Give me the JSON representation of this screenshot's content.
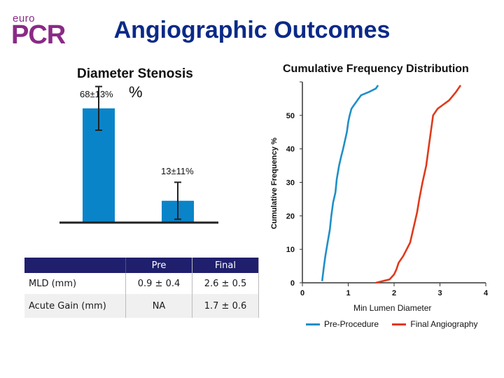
{
  "header": {
    "logo_top": "euro",
    "logo_main": "PCR",
    "title": "Angiographic Outcomes"
  },
  "colors": {
    "logo": "#8a2a86",
    "title": "#0a2a88",
    "bar": "#0a84c9",
    "pre": "#1f8fc8",
    "final": "#e03a1a",
    "table_header": "#1f1f6e"
  },
  "bar_panel": {
    "title_line1": "Diameter Stenosis",
    "title_line2": "%",
    "value_labels": [
      "68±13%",
      "13±11%"
    ]
  },
  "cfd_panel": {
    "title": "Cumulative Frequency Distribution",
    "ylabel": "Cumulative Frequency %",
    "xlabel": "Min Lumen Diameter",
    "legend": [
      "Pre-Procedure",
      "Final Angiography"
    ]
  },
  "table": {
    "headers": [
      "",
      "Pre",
      "Final"
    ],
    "rows": [
      {
        "label": "MLD (mm)",
        "pre": "0.9 ± 0.4",
        "final": "2.6 ± 0.5"
      },
      {
        "label": "Acute Gain (mm)",
        "pre": "NA",
        "final": "1.7 ± 0.6"
      }
    ]
  },
  "chart_data": [
    {
      "type": "bar",
      "title": "Diameter Stenosis %",
      "categories": [
        "",
        ""
      ],
      "values": [
        68,
        13
      ],
      "errors": [
        13,
        11
      ],
      "data_labels": [
        "68±13%",
        "13±11%"
      ],
      "ylim": [
        0,
        100
      ]
    },
    {
      "type": "line",
      "title": "Cumulative Frequency Distribution",
      "xlabel": "Min Lumen Diameter",
      "ylabel": "Cumulative Frequency %",
      "xlim": [
        0,
        4
      ],
      "ylim": [
        0,
        60
      ],
      "x_ticks": [
        0,
        1,
        2,
        3,
        4
      ],
      "y_ticks": [
        0,
        10,
        20,
        30,
        40,
        50
      ],
      "legend": "bottom",
      "series": [
        {
          "name": "Pre-Procedure",
          "x": [
            0.43,
            0.47,
            0.5,
            0.55,
            0.6,
            0.63,
            0.67,
            0.72,
            0.75,
            0.8,
            0.85,
            0.88,
            0.92,
            0.97,
            1.0,
            1.03,
            1.07,
            1.12,
            1.2,
            1.28,
            1.45,
            1.6,
            1.65
          ],
          "y": [
            0.5,
            5,
            8,
            12,
            16,
            20,
            24,
            27,
            31,
            35,
            38,
            39.5,
            42,
            45,
            48,
            50,
            52,
            53,
            54.5,
            56,
            57,
            58,
            59
          ]
        },
        {
          "name": "Final Angiography",
          "x": [
            1.6,
            1.9,
            2.0,
            2.05,
            2.1,
            2.2,
            2.35,
            2.45,
            2.5,
            2.55,
            2.62,
            2.7,
            2.75,
            2.8,
            2.85,
            2.95,
            3.05,
            3.2,
            3.35,
            3.45
          ],
          "y": [
            0,
            1,
            2.5,
            4,
            6,
            8,
            12,
            18,
            21,
            25,
            30,
            35,
            40,
            45,
            50,
            52,
            53,
            54.5,
            57,
            59
          ]
        }
      ]
    }
  ]
}
